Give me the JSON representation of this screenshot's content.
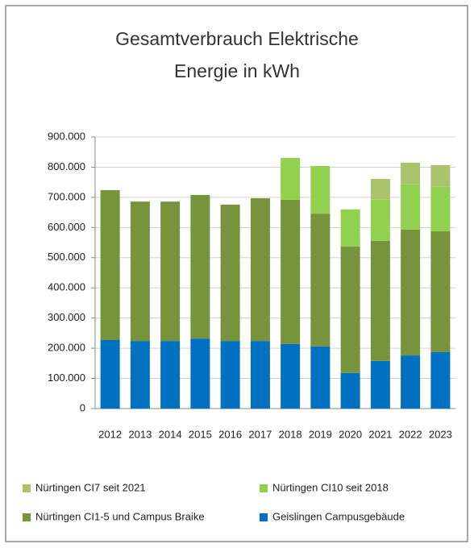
{
  "chart_data": {
    "type": "stacked_bar",
    "title": [
      "Gesamtverbrauch Elektrische",
      "Energie in kWh"
    ],
    "categories": [
      "2012",
      "2013",
      "2014",
      "2015",
      "2016",
      "2017",
      "2018",
      "2019",
      "2020",
      "2021",
      "2022",
      "2023"
    ],
    "series": [
      {
        "name": "Geislingen Campusgebäude",
        "color": "#0070c0",
        "values": [
          227000,
          224000,
          224000,
          232000,
          224000,
          224000,
          214000,
          206000,
          118000,
          158000,
          176000,
          187000
        ]
      },
      {
        "name": "Nürtingen CI1-5 und Campus Braike",
        "color": "#77933c",
        "values": [
          497000,
          462000,
          462000,
          476000,
          452000,
          473000,
          478000,
          440000,
          419000,
          398000,
          417000,
          401000
        ]
      },
      {
        "name": "Nürtingen CI10 seit 2018",
        "color": "#92d050",
        "values": [
          null,
          null,
          null,
          null,
          null,
          null,
          139000,
          158000,
          123000,
          136000,
          150000,
          147000
        ]
      },
      {
        "name": "Nürtingen CI7 seit 2021",
        "color": "#a9c46b",
        "values": [
          null,
          null,
          null,
          null,
          null,
          null,
          null,
          null,
          null,
          69000,
          72000,
          72000
        ]
      }
    ],
    "ylim": [
      0,
      900000
    ],
    "yticks": [
      0,
      {
        "value": 100000,
        "label": "100.000"
      },
      {
        "value": 200000,
        "label": "200.000"
      },
      {
        "value": 300000,
        "label": "300.000"
      },
      {
        "value": 400000,
        "label": "400.000"
      },
      {
        "value": 500000,
        "label": "500.000"
      },
      {
        "value": 600000,
        "label": "600.000"
      },
      {
        "value": 700000,
        "label": "700.000"
      },
      {
        "value": 800000,
        "label": "800.000"
      },
      {
        "value": 900000,
        "label": "900.000"
      }
    ],
    "grid": true
  }
}
